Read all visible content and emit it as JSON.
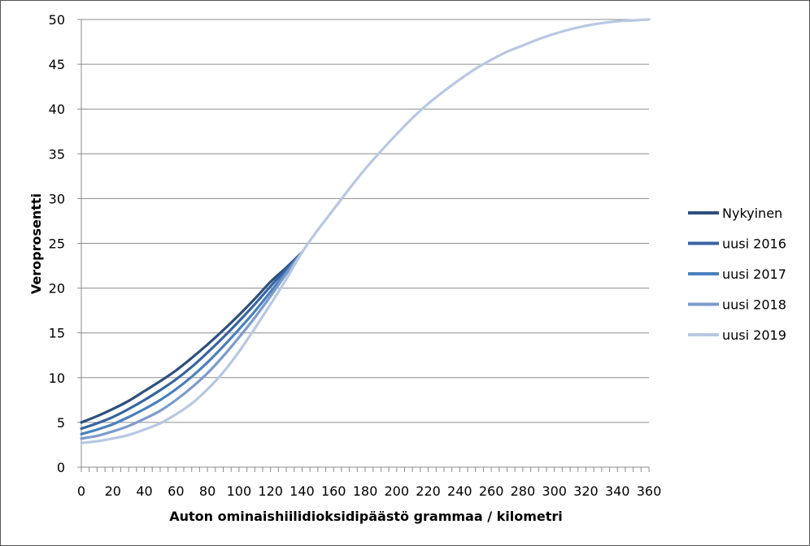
{
  "chart_data": {
    "type": "line",
    "title": "",
    "xlabel": "Auton ominaishiilidioksidipäästö   grammaa / kilometri",
    "ylabel": "Veroprosentti",
    "xlim": [
      0,
      360
    ],
    "ylim": [
      0,
      50
    ],
    "x_ticks": [
      "0",
      "20",
      "40",
      "60",
      "80",
      "100",
      "120",
      "140",
      "160",
      "180",
      "200",
      "220",
      "240",
      "260",
      "280",
      "300",
      "320",
      "340",
      "360"
    ],
    "y_ticks": [
      "0",
      "5",
      "10",
      "15",
      "20",
      "25",
      "30",
      "35",
      "40",
      "45",
      "50"
    ],
    "grid": "horizontal",
    "legend_position": "right",
    "series": [
      {
        "name": "Nykyinen",
        "color": "#2e4f7e",
        "x": [
          0,
          10,
          20,
          30,
          40,
          50,
          60,
          70,
          80,
          90,
          100,
          110,
          120,
          130,
          140
        ],
        "values": [
          5.0,
          5.7,
          6.5,
          7.4,
          8.5,
          9.6,
          10.8,
          12.2,
          13.7,
          15.3,
          17.0,
          18.8,
          20.7,
          22.3,
          24.0
        ]
      },
      {
        "name": "uusi 2016",
        "color": "#3764a0",
        "x": [
          0,
          10,
          20,
          30,
          40,
          50,
          60,
          70,
          80,
          90,
          100,
          110,
          120,
          130,
          140
        ],
        "values": [
          4.3,
          4.9,
          5.6,
          6.5,
          7.5,
          8.6,
          9.8,
          11.2,
          12.8,
          14.5,
          16.3,
          18.2,
          20.2,
          22.1,
          24.0
        ]
      },
      {
        "name": "uusi 2017",
        "color": "#4a80bd",
        "x": [
          0,
          10,
          20,
          30,
          40,
          50,
          60,
          70,
          80,
          90,
          100,
          110,
          120,
          130,
          140
        ],
        "values": [
          3.7,
          4.2,
          4.8,
          5.6,
          6.5,
          7.5,
          8.7,
          10.1,
          11.7,
          13.5,
          15.4,
          17.4,
          19.6,
          21.8,
          24.0
        ]
      },
      {
        "name": "uusi 2018",
        "color": "#7b9bcb",
        "x": [
          0,
          10,
          20,
          30,
          40,
          50,
          60,
          70,
          80,
          90,
          100,
          110,
          120,
          130,
          140
        ],
        "values": [
          3.2,
          3.5,
          4.0,
          4.6,
          5.4,
          6.3,
          7.5,
          8.9,
          10.5,
          12.4,
          14.5,
          16.7,
          19.1,
          21.6,
          24.0
        ]
      },
      {
        "name": "uusi 2019",
        "color": "#b7c8e3",
        "x": [
          0,
          10,
          20,
          30,
          40,
          50,
          60,
          70,
          80,
          90,
          100,
          110,
          120,
          130,
          140,
          150,
          160,
          170,
          180,
          190,
          200,
          210,
          220,
          230,
          240,
          250,
          260,
          270,
          280,
          290,
          300,
          310,
          320,
          330,
          340,
          350,
          360
        ],
        "values": [
          2.7,
          2.9,
          3.2,
          3.6,
          4.2,
          4.9,
          5.9,
          7.1,
          8.7,
          10.6,
          12.9,
          15.5,
          18.2,
          21.0,
          24.0,
          26.5,
          28.8,
          31.1,
          33.3,
          35.3,
          37.2,
          39.0,
          40.6,
          42.0,
          43.3,
          44.5,
          45.5,
          46.4,
          47.1,
          47.8,
          48.4,
          48.9,
          49.3,
          49.6,
          49.8,
          49.9,
          50.0
        ]
      }
    ]
  }
}
